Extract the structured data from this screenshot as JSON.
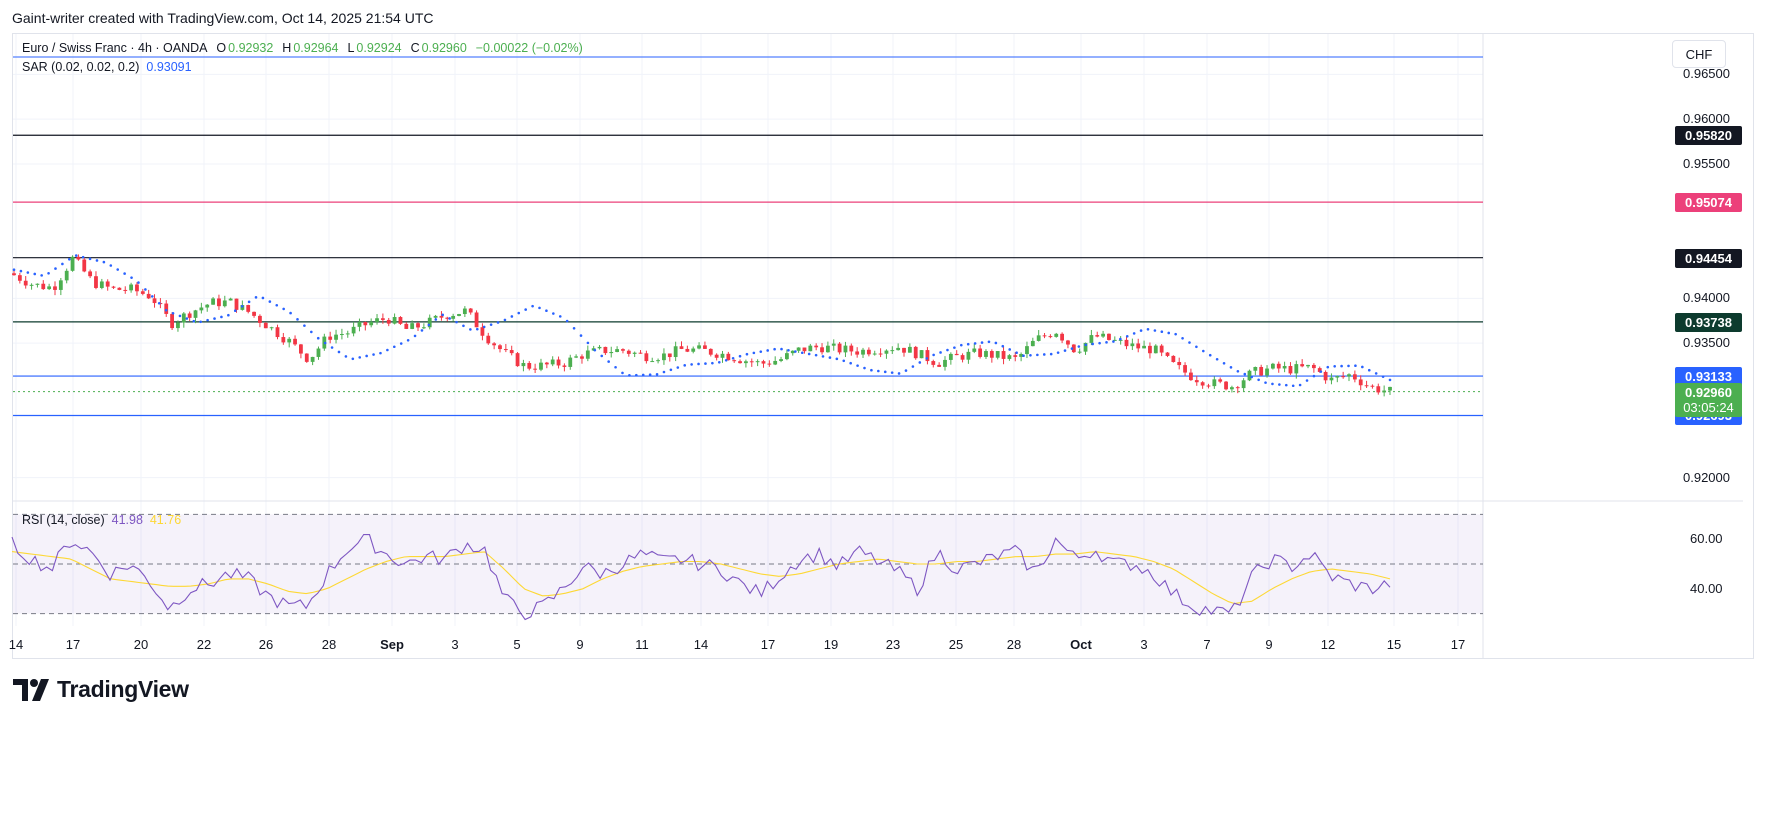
{
  "header": {
    "creator_text": "Gaint-writer created with TradingView.com, Oct 14, 2025 21:54 UTC"
  },
  "legend": {
    "symbol": "Euro / Swiss Franc · 4h · OANDA",
    "o_label": "O",
    "o_value": "0.92932",
    "h_label": "H",
    "h_value": "0.92964",
    "l_label": "L",
    "l_value": "0.92924",
    "c_label": "C",
    "c_value": "0.92960",
    "change": "−0.00022 (−0.02%)",
    "sar_label": "SAR (0.02, 0.02, 0.2)",
    "sar_value": "0.93091"
  },
  "rsi_legend": {
    "label": "RSI (14, close)",
    "rsi_value": "41.98",
    "ma_value": "41.76"
  },
  "currency": "CHF",
  "price_axis": {
    "ticks": [
      "0.96500",
      "0.96000",
      "0.95500",
      "0.94000",
      "0.93500",
      "0.92000"
    ],
    "tick_values": [
      0.965,
      0.96,
      0.955,
      0.94,
      0.935,
      0.92
    ]
  },
  "levels": [
    {
      "label": "0.95820",
      "value": 0.9582,
      "color": "#131722"
    },
    {
      "label": "0.95074",
      "value": 0.95074,
      "color": "#ec407a"
    },
    {
      "label": "0.94454",
      "value": 0.94454,
      "color": "#131722"
    },
    {
      "label": "0.93738",
      "value": 0.93738,
      "color": "#0d3b2e"
    },
    {
      "label": "0.93133",
      "value": 0.93133,
      "color": "#2962ff"
    },
    {
      "label": "0.92693",
      "value": 0.92693,
      "color": "#2962ff"
    }
  ],
  "top_line_color": "#2962ff",
  "current_price": {
    "label": "0.92960",
    "countdown": "03:05:24",
    "value": 0.9296,
    "color": "#4caf50"
  },
  "rsi_axis": {
    "ticks": [
      "60.00",
      "40.00"
    ],
    "tick_values": [
      60,
      40
    ],
    "upper_band": 70,
    "middle": 50,
    "lower_band": 30
  },
  "time_axis": [
    {
      "label": "14",
      "bold": false
    },
    {
      "label": "17",
      "bold": false
    },
    {
      "label": "20",
      "bold": false
    },
    {
      "label": "22",
      "bold": false
    },
    {
      "label": "26",
      "bold": false
    },
    {
      "label": "28",
      "bold": false
    },
    {
      "label": "Sep",
      "bold": true
    },
    {
      "label": "3",
      "bold": false
    },
    {
      "label": "5",
      "bold": false
    },
    {
      "label": "9",
      "bold": false
    },
    {
      "label": "11",
      "bold": false
    },
    {
      "label": "14",
      "bold": false
    },
    {
      "label": "17",
      "bold": false
    },
    {
      "label": "19",
      "bold": false
    },
    {
      "label": "23",
      "bold": false
    },
    {
      "label": "25",
      "bold": false
    },
    {
      "label": "28",
      "bold": false
    },
    {
      "label": "Oct",
      "bold": true
    },
    {
      "label": "3",
      "bold": false
    },
    {
      "label": "7",
      "bold": false
    },
    {
      "label": "9",
      "bold": false
    },
    {
      "label": "12",
      "bold": false
    },
    {
      "label": "15",
      "bold": false
    },
    {
      "label": "17",
      "bold": false
    }
  ],
  "chart_data": {
    "type": "candlestick",
    "price_ylim": [
      0.9175,
      0.9695
    ],
    "rsi_ylim": [
      25,
      75
    ],
    "close_path": [
      0.9426,
      0.9415,
      0.9412,
      0.9445,
      0.9418,
      0.941,
      0.941,
      0.9402,
      0.9372,
      0.9385,
      0.9395,
      0.9396,
      0.9384,
      0.9368,
      0.9352,
      0.9332,
      0.9358,
      0.9362,
      0.9372,
      0.9378,
      0.9365,
      0.9372,
      0.9382,
      0.9386,
      0.9358,
      0.9338,
      0.9324,
      0.9325,
      0.9328,
      0.9338,
      0.9342,
      0.9342,
      0.9336,
      0.9336,
      0.9343,
      0.9342,
      0.9338,
      0.9332,
      0.9327,
      0.9332,
      0.9343,
      0.9346,
      0.9343,
      0.9341,
      0.9344,
      0.9346,
      0.9338,
      0.9328,
      0.9335,
      0.9339,
      0.9336,
      0.9332,
      0.9354,
      0.9364,
      0.9342,
      0.9358,
      0.9352,
      0.9346,
      0.9343,
      0.9325,
      0.9312,
      0.9305,
      0.9302,
      0.9317,
      0.9322,
      0.9321,
      0.9323,
      0.9309,
      0.9315,
      0.9301,
      0.9296
    ],
    "sar_path": [
      0.9432,
      0.9425,
      0.9448,
      0.944,
      0.942,
      0.9386,
      0.9373,
      0.9381,
      0.9403,
      0.9385,
      0.9354,
      0.9332,
      0.9339,
      0.9355,
      0.9382,
      0.9364,
      0.9375,
      0.9392,
      0.9378,
      0.9342,
      0.9314,
      0.9315,
      0.9326,
      0.9328,
      0.9338,
      0.9344,
      0.9338,
      0.9332,
      0.932,
      0.9316,
      0.9336,
      0.9348,
      0.9352,
      0.9336,
      0.9338,
      0.9348,
      0.9352,
      0.9366,
      0.936,
      0.9339,
      0.9319,
      0.9305,
      0.9302,
      0.9324,
      0.9325,
      0.9309
    ],
    "rsi_path": [
      58,
      52,
      48,
      60,
      55,
      46,
      50,
      43,
      32,
      40,
      42,
      46,
      44,
      37,
      33,
      33,
      46,
      56,
      60,
      54,
      50,
      53,
      52,
      58,
      56,
      36,
      30,
      33,
      40,
      49,
      46,
      50,
      54,
      51,
      52,
      50,
      48,
      42,
      38,
      45,
      52,
      54,
      49,
      55,
      51,
      47,
      40,
      55,
      48,
      50,
      53,
      55,
      46,
      60,
      52,
      56,
      50,
      50,
      46,
      38,
      33,
      31,
      30,
      45,
      52,
      49,
      54,
      45,
      42,
      40,
      42
    ],
    "rsi_ma_path": [
      55,
      54,
      53,
      52,
      48,
      44,
      43,
      42,
      41,
      41,
      42,
      44,
      44,
      42,
      39,
      38,
      40,
      44,
      48,
      51,
      53,
      53,
      53,
      54,
      55,
      48,
      40,
      37,
      38,
      40,
      44,
      47,
      49,
      50,
      51,
      51,
      50,
      48,
      46,
      45,
      46,
      48,
      50,
      51,
      52,
      51,
      50,
      50,
      51,
      51,
      52,
      53,
      53,
      54,
      54,
      55,
      54,
      53,
      51,
      48,
      43,
      38,
      34,
      35,
      40,
      44,
      47,
      48,
      47,
      46,
      44
    ]
  }
}
